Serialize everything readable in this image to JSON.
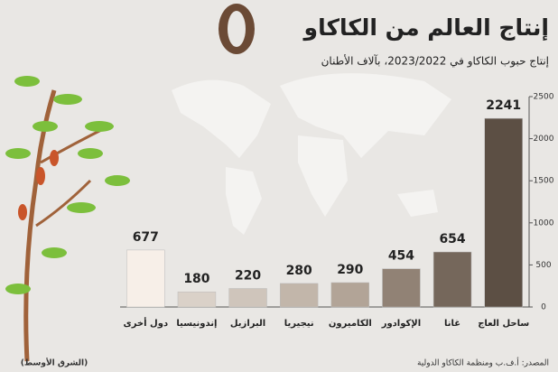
{
  "chart_data": {
    "type": "bar",
    "title": "إنتاج العالم من الكاكاو",
    "subtitle": "إنتاج حبوب الكاكاو في 2023/2022، بآلاف الأطنان",
    "categories": [
      "دول أخرى",
      "إندونيسيا",
      "البرازيل",
      "نيجيريا",
      "الكاميرون",
      "الإكوادور",
      "غانا",
      "ساحل العاج"
    ],
    "values": [
      677,
      180,
      220,
      280,
      290,
      454,
      654,
      2241
    ],
    "colors": [
      "#f7efe8",
      "#dad1c8",
      "#cfc5bb",
      "#c2b6aa",
      "#b2a497",
      "#918275",
      "#75675b",
      "#5c4f44"
    ],
    "ylim": [
      0,
      2500
    ],
    "yticks": [
      0,
      500,
      1000,
      1500,
      2000,
      2500
    ],
    "source": "المصدر: أ.ف.ب ومنظمة الكاكاو الدولية",
    "credit": "(الشرق الأوسط)"
  }
}
